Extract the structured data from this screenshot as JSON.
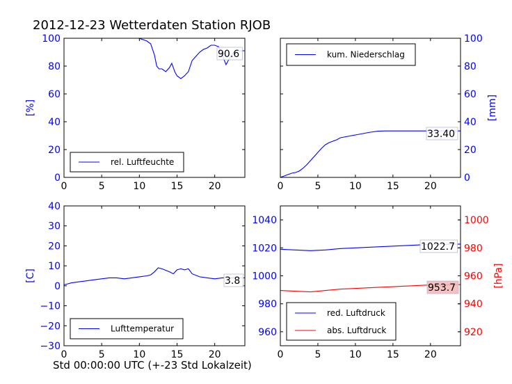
{
  "title": "2012-12-23 Wetterdaten Station RJOB",
  "x_caption": "Std 00:00:00 UTC (+-23 Std Lokalzeit)",
  "colors": {
    "blue": "#0000ff",
    "red": "#ff0000",
    "black": "#000000"
  },
  "chart_data": [
    {
      "type": "line",
      "panel": "top-left",
      "xlim": [
        0,
        24
      ],
      "xticks": [
        "0",
        "5",
        "10",
        "15",
        "20"
      ],
      "ylim": [
        0,
        100
      ],
      "yticks": [
        "0",
        "20",
        "40",
        "60",
        "80",
        "100"
      ],
      "ylabel": "[%]",
      "legend": "lower-left",
      "series": [
        {
          "name": "rel. Luftfeuchte",
          "color": "#0000ff",
          "x": [
            0,
            9.9,
            10.5,
            11.0,
            11.5,
            12.0,
            12.3,
            12.6,
            13.0,
            13.5,
            14.0,
            14.3,
            14.7,
            15.0,
            15.5,
            16.0,
            16.5,
            17.0,
            17.5,
            18.0,
            18.5,
            19.0,
            19.5,
            20.0,
            20.5,
            21.0,
            21.5,
            22.0,
            22.5,
            23.0,
            23.5,
            24.0
          ],
          "y": [
            100,
            100,
            99,
            98,
            96,
            88,
            80,
            78,
            78,
            76,
            79,
            82,
            76,
            73,
            71,
            73,
            76,
            84,
            87,
            90,
            92,
            93,
            95,
            95,
            94,
            88,
            81,
            86,
            90,
            91,
            91,
            91
          ]
        }
      ],
      "last_value_label": "90.6"
    },
    {
      "type": "line",
      "panel": "top-right",
      "xlim": [
        0,
        24
      ],
      "xticks": [
        "0",
        "5",
        "10",
        "15",
        "20"
      ],
      "ylim": [
        0,
        100
      ],
      "yticks": [
        "0",
        "20",
        "40",
        "60",
        "80",
        "100"
      ],
      "ylabel": "[mm]",
      "legend": "upper-left",
      "series": [
        {
          "name": "kum. Niederschlag",
          "color": "#0000ff",
          "x": [
            0,
            0.5,
            1,
            1.5,
            2,
            2.5,
            3,
            3.5,
            4,
            4.5,
            5,
            5.5,
            6,
            6.5,
            7,
            7.5,
            8,
            9,
            10,
            11,
            12,
            13,
            14,
            15,
            16,
            18,
            20,
            22,
            24
          ],
          "y": [
            0,
            1,
            2,
            3,
            3.5,
            4.5,
            6.5,
            9,
            12,
            15,
            18,
            21,
            23.5,
            25,
            26,
            27,
            28.5,
            29.5,
            30.5,
            31.5,
            32.5,
            33.2,
            33.4,
            33.4,
            33.4,
            33.4,
            33.4,
            33.4,
            33.4
          ]
        }
      ],
      "last_value_label": "33.40"
    },
    {
      "type": "line",
      "panel": "bottom-left",
      "xlim": [
        0,
        24
      ],
      "xticks": [
        "0",
        "5",
        "10",
        "15",
        "20"
      ],
      "ylim": [
        -30,
        40
      ],
      "yticks": [
        "−30",
        "−20",
        "−10",
        "0",
        "10",
        "20",
        "30",
        "40"
      ],
      "ylabel": "[C]",
      "legend": "lower-left",
      "series": [
        {
          "name": "Lufttemperatur",
          "color": "#0000ff",
          "x": [
            0,
            0.5,
            1,
            2,
            3,
            4,
            5,
            6,
            7,
            8,
            9,
            10,
            11,
            11.5,
            12,
            12.5,
            13,
            14,
            14.5,
            15,
            15.5,
            16,
            16.5,
            17,
            18,
            19,
            20,
            21,
            22,
            23,
            24
          ],
          "y": [
            0.5,
            1,
            1.5,
            2,
            2.5,
            3,
            3.5,
            4,
            4,
            3.5,
            4,
            4.5,
            5,
            5.5,
            7,
            9,
            8.5,
            7,
            6,
            8,
            8.5,
            8,
            8.5,
            6,
            4.5,
            4,
            3.5,
            4,
            4,
            4,
            4
          ]
        }
      ],
      "last_value_label": "3.8"
    },
    {
      "type": "line",
      "panel": "bottom-right",
      "xlim": [
        0,
        24
      ],
      "xticks": [
        "0",
        "5",
        "10",
        "15",
        "20"
      ],
      "ylim": [
        950,
        1050
      ],
      "yticks": [
        "960",
        "980",
        "1000",
        "1020",
        "1040"
      ],
      "y2lim": [
        910,
        1010
      ],
      "y2ticks": [
        "920",
        "940",
        "960",
        "980",
        "1000"
      ],
      "y2label": "[hPa]",
      "legend": "lower-left",
      "series": [
        {
          "name": "red. Luftdruck",
          "color": "#0000ff",
          "axis": "left",
          "x": [
            0,
            2,
            4,
            6,
            8,
            10,
            12,
            14,
            16,
            18,
            20,
            22,
            24
          ],
          "y": [
            1019,
            1018.5,
            1018,
            1018.5,
            1019.5,
            1020,
            1020.5,
            1021,
            1021.5,
            1022,
            1022.5,
            1022.5,
            1022.7
          ]
        },
        {
          "name": "abs. Luftdruck",
          "color": "#ff0000",
          "axis": "right",
          "x": [
            0,
            2,
            4,
            6,
            8,
            10,
            12,
            14,
            16,
            18,
            20,
            22,
            24
          ],
          "y": [
            949.5,
            949,
            948.5,
            949.5,
            950.5,
            951,
            951.5,
            952,
            952.5,
            953,
            953.5,
            953.5,
            953.7
          ]
        }
      ],
      "last_value_labels": [
        "1022.7",
        "953.7"
      ]
    }
  ]
}
